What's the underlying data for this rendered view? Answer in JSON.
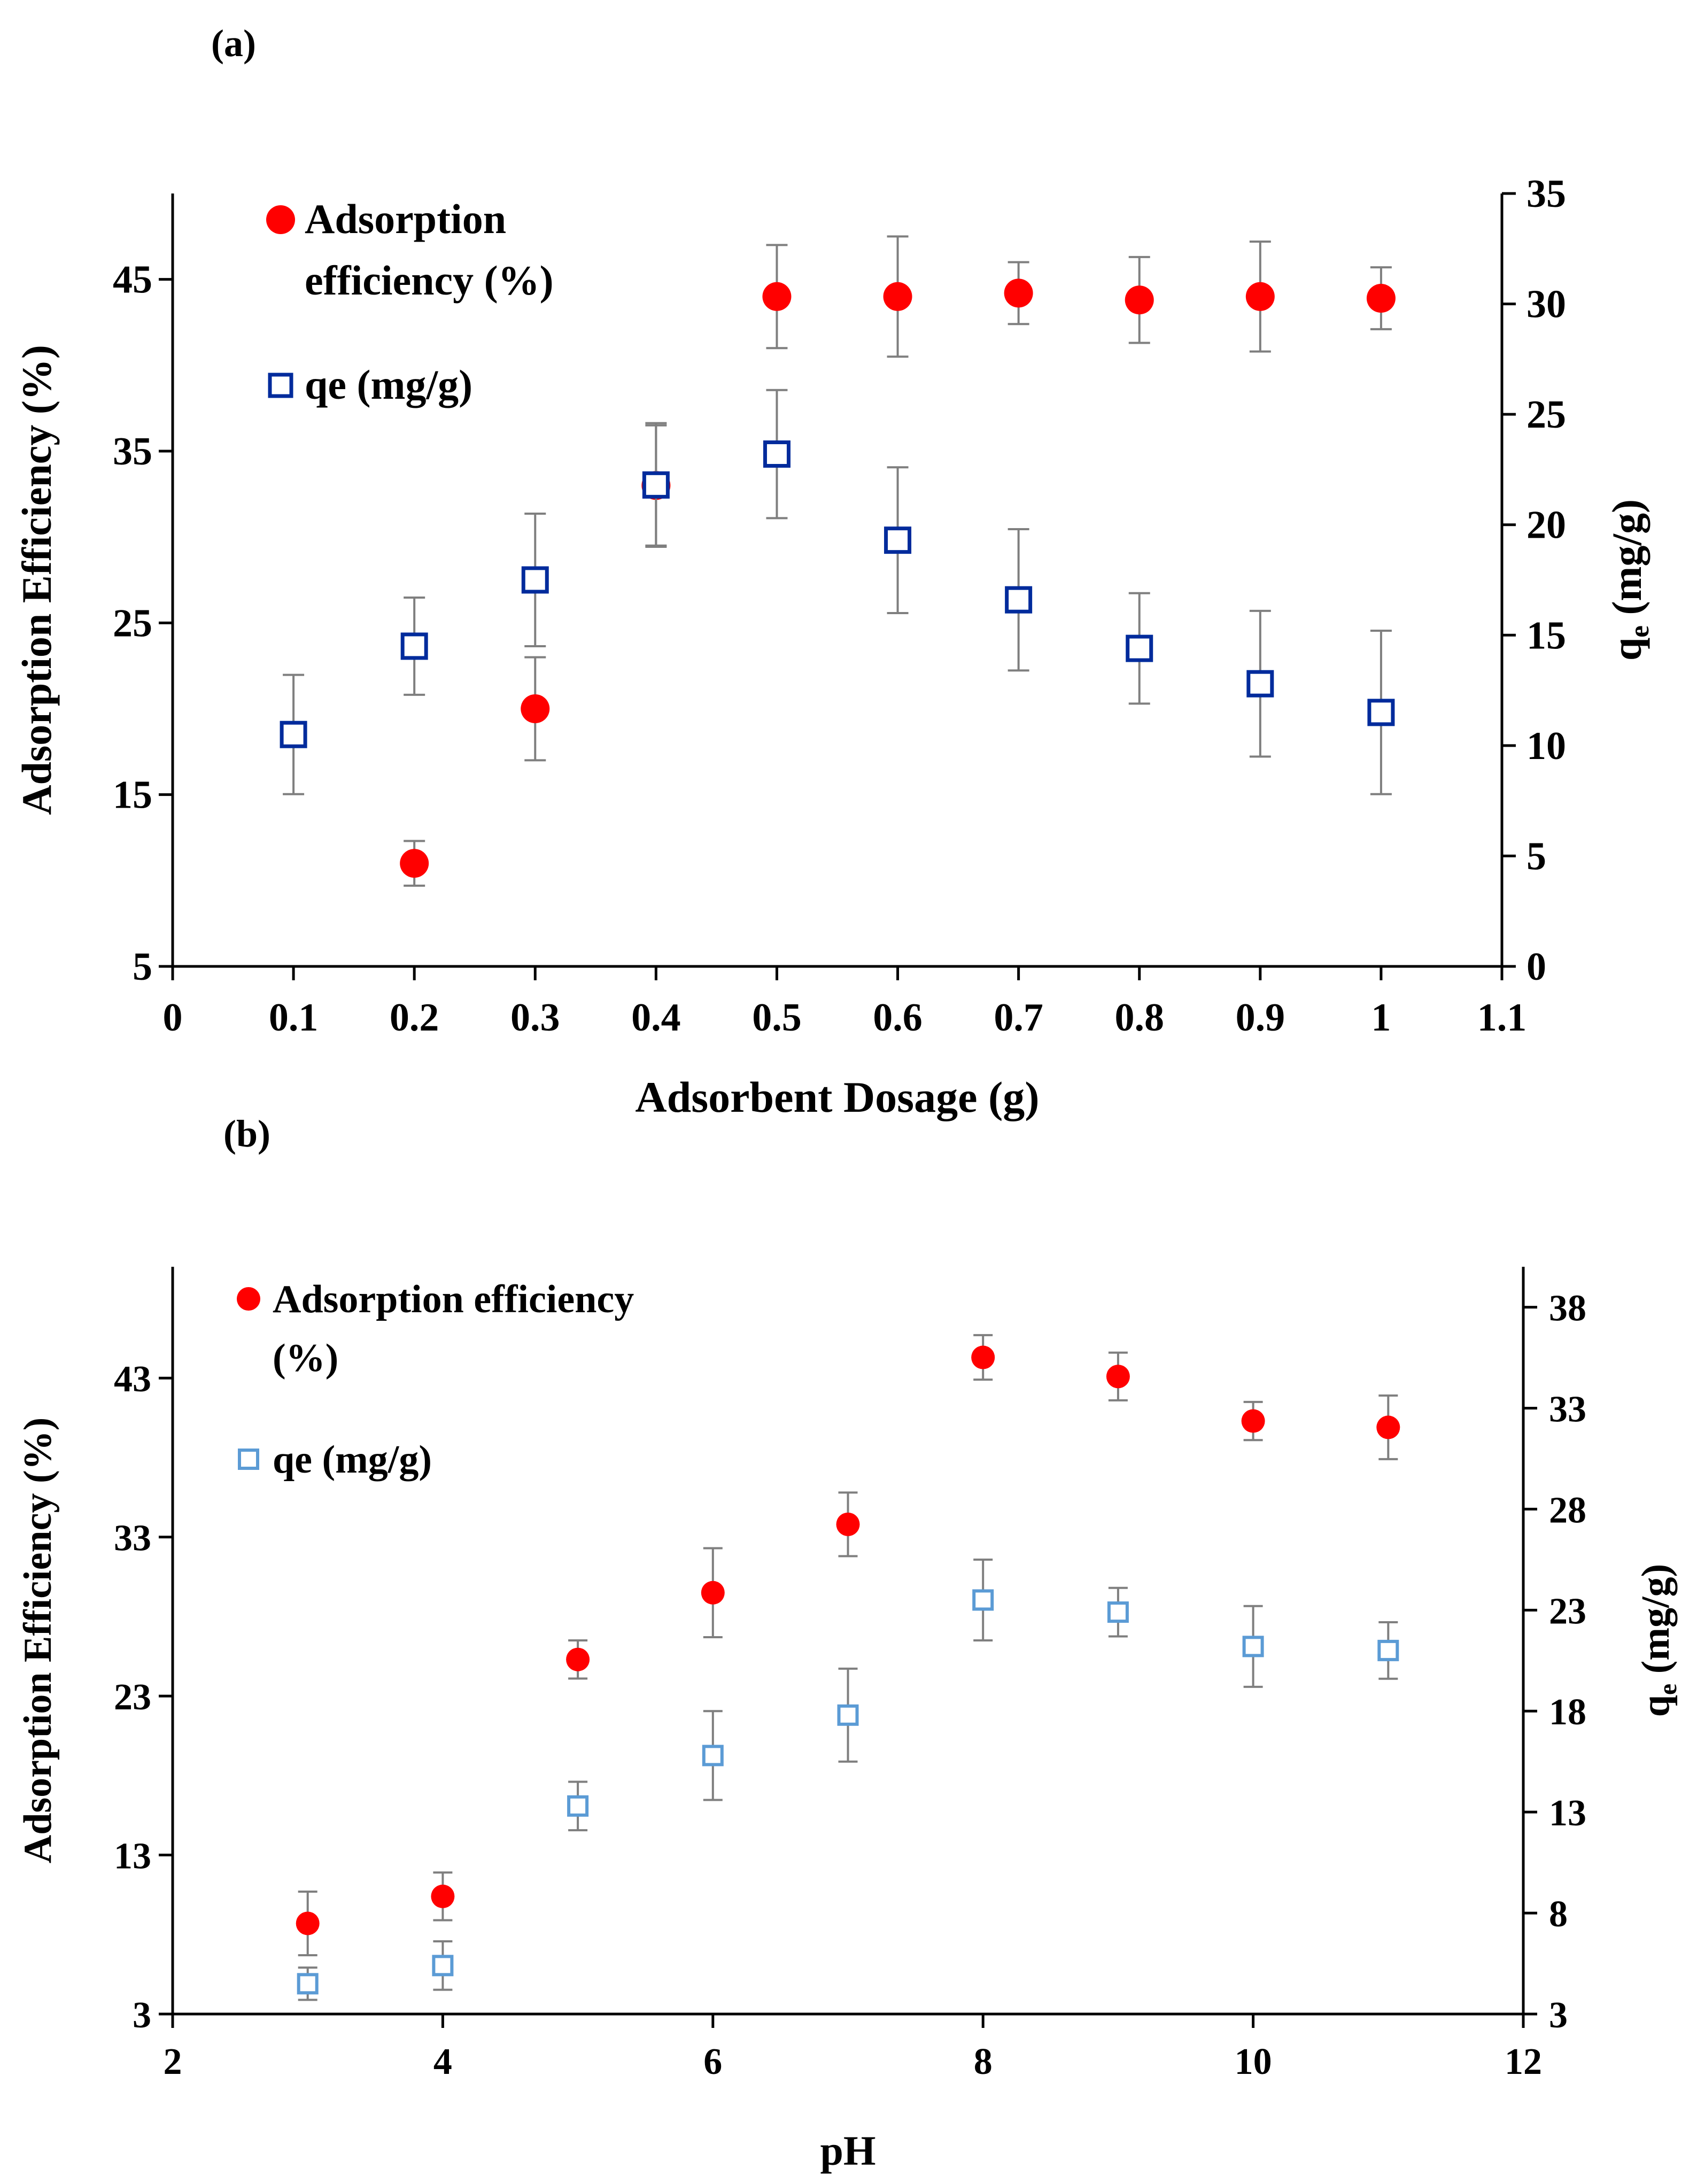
{
  "chart_data": [
    {
      "type": "scatter",
      "panel_label": "(a)",
      "xlabel": "Adsorbent Dosage (g)",
      "ylabel": "Adsorption Efficiency (%)",
      "y2label": "q",
      "y2label_sub": "e",
      "y2label_suffix": " (mg/g)",
      "xlim": [
        0,
        1.1
      ],
      "ylim": [
        5,
        50
      ],
      "y2lim": [
        0,
        35
      ],
      "x_ticks": [
        0,
        0.1,
        0.2,
        0.3,
        0.4,
        0.5,
        0.6,
        0.7,
        0.8,
        0.9,
        1,
        1.1
      ],
      "y_ticks": [
        5,
        15,
        25,
        35,
        45
      ],
      "y2_ticks": [
        0,
        5,
        10,
        15,
        20,
        25,
        30,
        35
      ],
      "grid": false,
      "legend_position": "top-left",
      "series": [
        {
          "name": "Adsorption efficiency (%)",
          "legend_lines": [
            "Adsorption",
            "efficiency (%)"
          ],
          "axis": "left",
          "marker": "filled-circle",
          "color": "#ff0000",
          "x": [
            0.2,
            0.3,
            0.4,
            0.5,
            0.6,
            0.7,
            0.8,
            0.9,
            1
          ],
          "y": [
            11,
            20,
            33,
            44,
            44,
            44.2,
            43.8,
            44,
            43.9
          ],
          "err": [
            1.3,
            3,
            3.5,
            3,
            3.5,
            1.8,
            2.5,
            3.2,
            1.8
          ]
        },
        {
          "name": "qe (mg/g)",
          "legend_lines": [
            "qe (mg/g)"
          ],
          "axis": "right",
          "marker": "open-square",
          "color": "#002b9c",
          "x": [
            0.1,
            0.2,
            0.3,
            0.4,
            0.5,
            0.6,
            0.7,
            0.8,
            0.9,
            1
          ],
          "y": [
            10.5,
            14.5,
            17.5,
            21.8,
            23.2,
            19.3,
            16.6,
            14.4,
            12.8,
            11.5
          ],
          "err": [
            2.7,
            2.2,
            3,
            2.8,
            2.9,
            3.3,
            3.2,
            2.5,
            3.3,
            3.7
          ]
        }
      ]
    },
    {
      "type": "scatter",
      "panel_label": "(b)",
      "xlabel": "pH",
      "ylabel": "Adsorption Efficiency (%)",
      "y2label": "q",
      "y2label_sub": "e",
      "y2label_suffix": " (mg/g)",
      "xlim": [
        2,
        12
      ],
      "ylim": [
        3,
        50
      ],
      "y2lim": [
        3,
        40
      ],
      "x_ticks": [
        2,
        4,
        6,
        8,
        10,
        12
      ],
      "y_ticks": [
        3,
        13,
        23,
        33,
        43
      ],
      "y2_ticks": [
        3,
        8,
        13,
        18,
        23,
        28,
        33,
        38
      ],
      "grid": false,
      "legend_position": "top-left",
      "series": [
        {
          "name": "Adsorption efficiency (%)",
          "legend_lines": [
            "Adsorption efficiency",
            "(%)"
          ],
          "axis": "left",
          "marker": "filled-circle",
          "color": "#ff0000",
          "x": [
            3,
            4,
            5,
            6,
            7,
            8,
            9,
            10,
            11
          ],
          "y": [
            8.7,
            10.4,
            25.3,
            29.5,
            33.8,
            44.3,
            43.1,
            40.3,
            39.9
          ],
          "err": [
            2,
            1.5,
            1.2,
            2.8,
            2,
            1.4,
            1.5,
            1.2,
            2
          ]
        },
        {
          "name": "qe (mg/g)",
          "legend_lines": [
            "qe (mg/g)"
          ],
          "axis": "right",
          "marker": "open-square",
          "color": "#5b9bd5",
          "x": [
            3,
            4,
            5,
            6,
            7,
            8,
            9,
            10,
            11
          ],
          "y": [
            4.5,
            5.4,
            13.3,
            15.8,
            17.8,
            23.5,
            22.9,
            21.2,
            21
          ],
          "err": [
            0.8,
            1.2,
            1.2,
            2.2,
            2.3,
            2,
            1.2,
            2,
            1.4
          ]
        }
      ]
    }
  ]
}
